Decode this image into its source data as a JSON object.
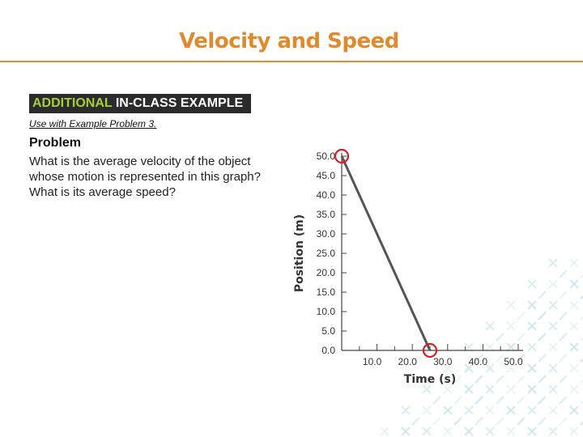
{
  "slide": {
    "title": "Velocity and Speed",
    "accent_color": "#E08A2E"
  },
  "example": {
    "banner_part1": "ADDITIONAL ",
    "banner_part2": "IN-CLASS EXAMPLE",
    "banner_highlight_color": "#A6CE39",
    "use_with": "Use with Example Problem 3.",
    "problem_heading": "Problem",
    "problem_text": "What is the average velocity of the object whose motion is represented in this graph? What is its average speed?"
  },
  "chart_data": {
    "type": "line",
    "title": "",
    "xlabel": "Time (s)",
    "ylabel": "Position (m)",
    "xlim": [
      0,
      50
    ],
    "ylim": [
      0,
      50
    ],
    "x_ticks": [
      10,
      20,
      30,
      40,
      50
    ],
    "x_tick_labels": [
      "10.0",
      "20.0",
      "30.0",
      "40.0",
      "50.0"
    ],
    "x_minor_ticks": [
      5,
      15,
      25,
      35,
      45
    ],
    "y_ticks": [
      0,
      5,
      10,
      15,
      20,
      25,
      30,
      35,
      40,
      45,
      50
    ],
    "y_tick_labels": [
      "0.0",
      "5.0",
      "10.0",
      "15.0",
      "20.0",
      "25.0",
      "30.0",
      "35.0",
      "40.0",
      "45.0",
      "50.0"
    ],
    "series": [
      {
        "name": "position",
        "x": [
          0,
          25
        ],
        "y": [
          50,
          0
        ]
      }
    ],
    "highlighted_points": [
      {
        "x": 0,
        "y": 50
      },
      {
        "x": 25,
        "y": 0
      }
    ],
    "line_color": "#555555",
    "marker_color": "#D62020",
    "grid": false
  }
}
